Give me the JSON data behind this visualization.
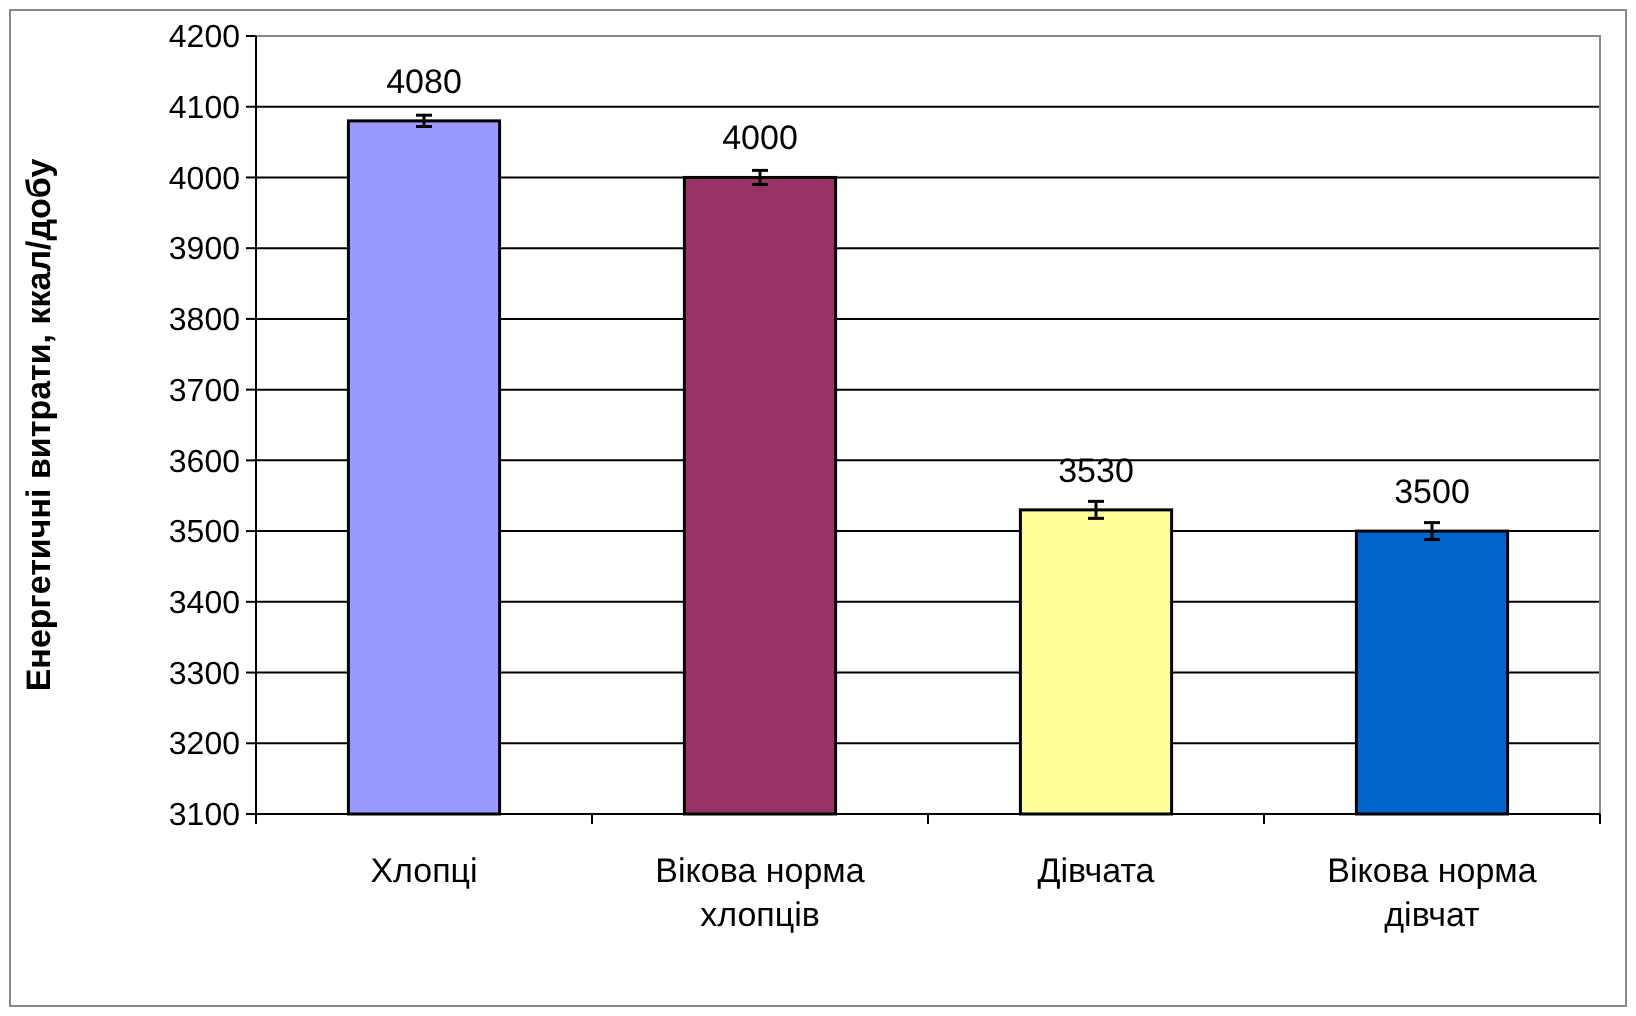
{
  "chart_data": {
    "type": "bar",
    "ylabel": "Енергетичні витрати, ккал/добу",
    "categories": [
      "Хлопці",
      "Вікова норма хлопців",
      "Дівчата",
      "Вікова норма дівчат"
    ],
    "values": [
      4080,
      4000,
      3530,
      3500
    ],
    "colors": [
      "#9999ff",
      "#993366",
      "#ffff99",
      "#0066cc"
    ],
    "errors": [
      8,
      10,
      12,
      12
    ],
    "data_labels": true,
    "grid": "y",
    "ylim": [
      3100,
      4200
    ],
    "yticks": [
      3100,
      3200,
      3300,
      3400,
      3500,
      3600,
      3700,
      3800,
      3900,
      4000,
      4100,
      4200
    ]
  }
}
